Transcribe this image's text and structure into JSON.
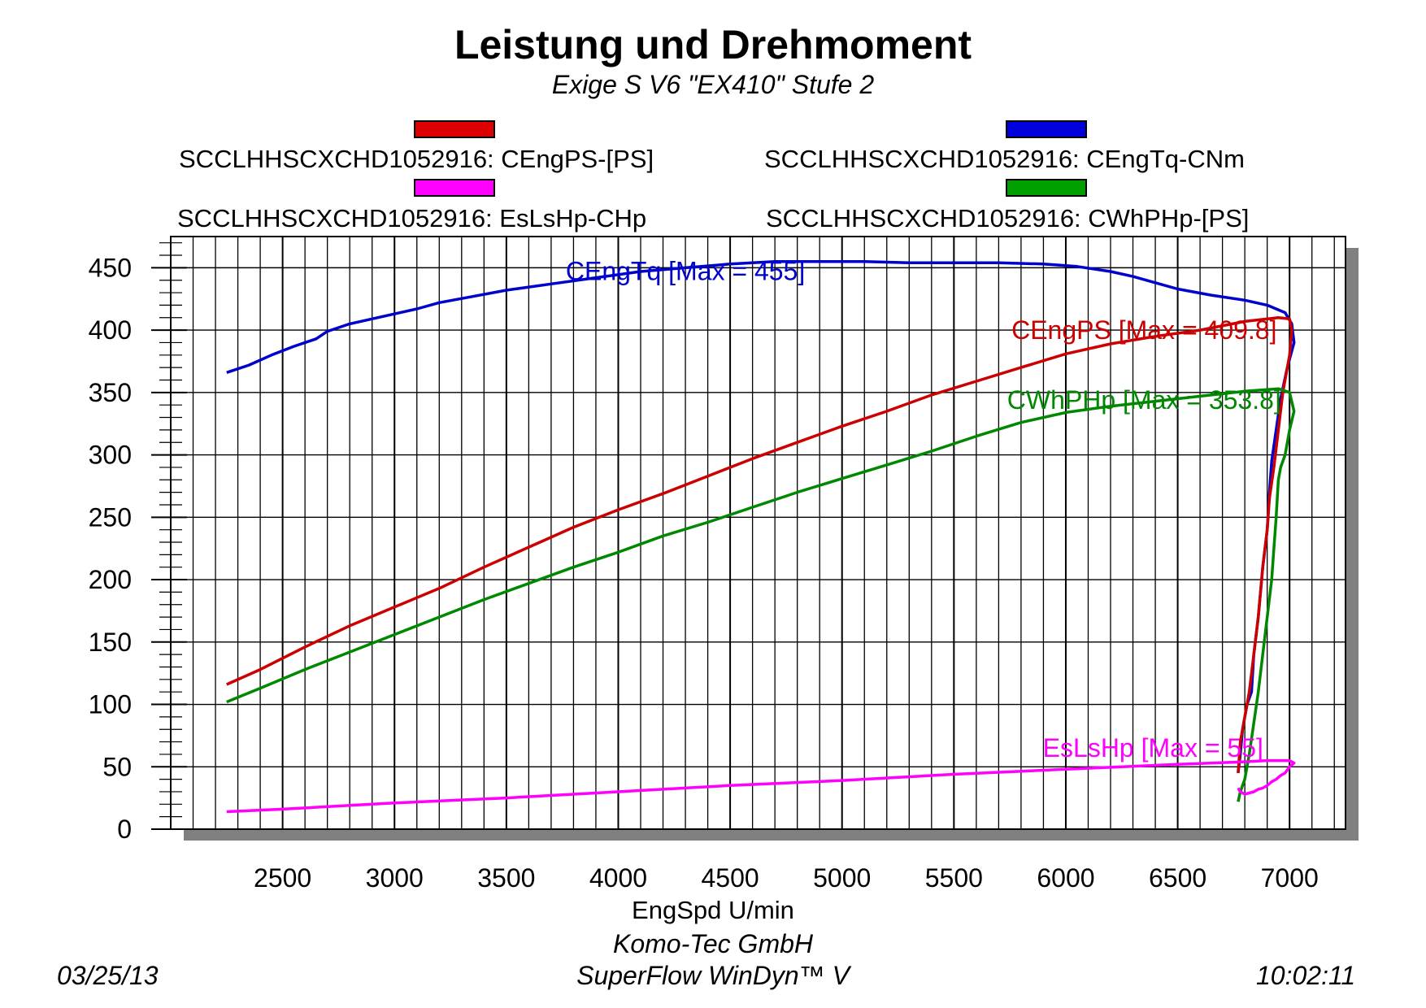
{
  "header": {
    "title": "Leistung und Drehmoment",
    "subtitle": "Exige S V6 \"EX410\" Stufe 2"
  },
  "legend": [
    {
      "label": "SCCLHHSCXCHD1052916: CEngPS-[PS]",
      "color": "#dd0000"
    },
    {
      "label": "SCCLHHSCXCHD1052916: CEngTq-CNm",
      "color": "#0000dd"
    },
    {
      "label": "SCCLHHSCXCHD1052916: EsLsHp-CHp",
      "color": "#ff00ff"
    },
    {
      "label": "SCCLHHSCXCHD1052916: CWhPHp-[PS]",
      "color": "#00a000"
    }
  ],
  "footer": {
    "xlabel": "EngSpd U/min",
    "company": "Komo-Tec GmbH",
    "software": "SuperFlow WinDyn™ V",
    "date": "03/25/13",
    "time": "10:02:11"
  },
  "chart_data": {
    "type": "line",
    "title": "Leistung und Drehmoment",
    "subtitle": "Exige S V6 \"EX410\" Stufe 2",
    "xlabel": "EngSpd U/min",
    "ylabel": "",
    "xlim": [
      2000,
      7250
    ],
    "ylim": [
      0,
      475
    ],
    "xticks": [
      2500,
      3000,
      3500,
      4000,
      4500,
      5000,
      5500,
      6000,
      6500,
      7000
    ],
    "yticks": [
      0,
      50,
      100,
      150,
      200,
      250,
      300,
      350,
      400,
      450
    ],
    "grid": true,
    "legend_position": "top",
    "series": [
      {
        "name": "SCCLHHSCXCHD1052916: CEngTq-CNm",
        "color": "#0000cc",
        "annotation": "CEngTq [Max = 455]",
        "x": [
          2250,
          2350,
          2450,
          2550,
          2650,
          2700,
          2800,
          2950,
          3100,
          3200,
          3350,
          3500,
          3700,
          3900,
          4100,
          4300,
          4500,
          4700,
          4900,
          5100,
          5300,
          5500,
          5700,
          5900,
          6050,
          6200,
          6300,
          6400,
          6500,
          6650,
          6800,
          6900,
          6980,
          7010,
          7020,
          6990,
          6960,
          6940,
          6920,
          6910,
          6900,
          6880,
          6860,
          6840,
          6830,
          6810,
          6790,
          6780,
          6770
        ],
        "y": [
          366,
          372,
          380,
          387,
          393,
          399,
          405,
          411,
          417,
          422,
          427,
          432,
          437,
          442,
          447,
          450,
          453,
          455,
          455,
          455,
          454,
          454,
          454,
          453,
          451,
          447,
          443,
          438,
          433,
          428,
          424,
          420,
          414,
          405,
          390,
          370,
          345,
          320,
          295,
          270,
          240,
          210,
          170,
          140,
          110,
          100,
          80,
          60,
          45
        ]
      },
      {
        "name": "SCCLHHSCXCHD1052916: CEngPS-[PS]",
        "color": "#cc0000",
        "annotation": "CEngPS [Max = 409.8]",
        "x": [
          2250,
          2400,
          2600,
          2800,
          3000,
          3200,
          3400,
          3600,
          3800,
          4000,
          4200,
          4400,
          4600,
          4800,
          5000,
          5200,
          5400,
          5600,
          5800,
          6000,
          6200,
          6400,
          6600,
          6800,
          6950,
          7000,
          7010,
          7000,
          6970,
          6950,
          6930,
          6910,
          6900,
          6880,
          6860,
          6840,
          6820,
          6800,
          6780,
          6770
        ],
        "y": [
          116,
          128,
          146,
          163,
          178,
          193,
          210,
          226,
          242,
          256,
          269,
          283,
          297,
          310,
          323,
          335,
          348,
          359,
          370,
          381,
          389,
          395,
          400,
          407,
          410,
          409,
          400,
          380,
          350,
          320,
          290,
          265,
          240,
          210,
          170,
          140,
          110,
          90,
          70,
          45
        ]
      },
      {
        "name": "SCCLHHSCXCHD1052916: CWhPHp-[PS]",
        "color": "#008800",
        "annotation": "CWhPHp [Max = 353.8]",
        "x": [
          2250,
          2400,
          2600,
          2800,
          3000,
          3200,
          3400,
          3600,
          3800,
          4000,
          4200,
          4400,
          4600,
          4800,
          5000,
          5200,
          5400,
          5600,
          5800,
          6000,
          6200,
          6400,
          6600,
          6800,
          6950,
          7000,
          7020,
          7000,
          6980,
          6960,
          6950,
          6940,
          6930,
          6920,
          6900,
          6880,
          6860,
          6840,
          6820,
          6800,
          6780,
          6770
        ],
        "y": [
          102,
          113,
          128,
          142,
          156,
          170,
          184,
          197,
          210,
          222,
          235,
          246,
          258,
          270,
          281,
          292,
          303,
          315,
          326,
          334,
          339,
          343,
          347,
          351,
          353,
          350,
          335,
          320,
          300,
          290,
          280,
          250,
          225,
          200,
          170,
          140,
          110,
          85,
          60,
          40,
          30,
          22
        ]
      },
      {
        "name": "SCCLHHSCXCHD1052916: EsLsHp-CHp",
        "color": "#ff00ff",
        "annotation": "EsLsHp [Max = 55]",
        "x": [
          2250,
          2500,
          3000,
          3500,
          4000,
          4500,
          5000,
          5500,
          6000,
          6500,
          6800,
          6900,
          7000,
          7020,
          7000,
          6980,
          6960,
          6940,
          6920,
          6900,
          6880,
          6860,
          6840,
          6820,
          6800,
          6780,
          6770
        ],
        "y": [
          14,
          16,
          21,
          25,
          30,
          35,
          39,
          44,
          48,
          52,
          54,
          55,
          55,
          53,
          50,
          45,
          43,
          40,
          38,
          35,
          33,
          32,
          30,
          29,
          28,
          30,
          33
        ]
      }
    ]
  }
}
